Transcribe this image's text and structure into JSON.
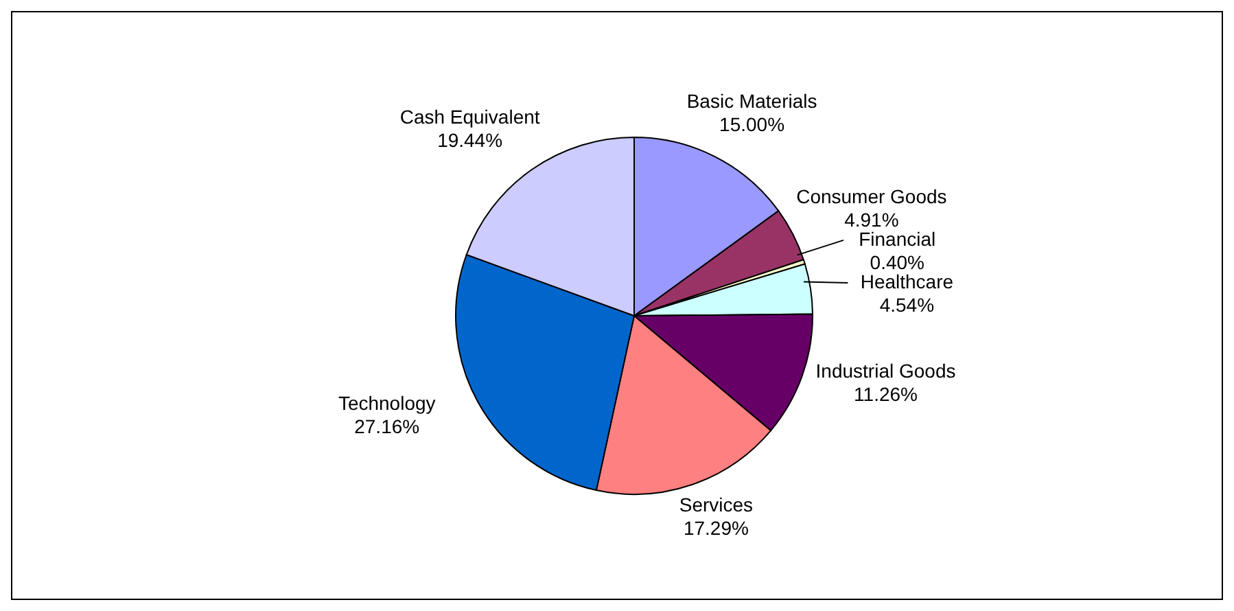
{
  "chart_data": {
    "type": "pie",
    "categories": [
      "Basic Materials",
      "Consumer Goods",
      "Financial",
      "Healthcare",
      "Industrial Goods",
      "Services",
      "Technology",
      "Cash Equivalent"
    ],
    "values": [
      15.0,
      4.91,
      0.4,
      4.54,
      11.26,
      17.29,
      27.16,
      19.44
    ],
    "value_labels": [
      "15.00%",
      "4.91%",
      "0.40%",
      "4.54%",
      "11.26%",
      "17.29%",
      "27.16%",
      "19.44%"
    ],
    "colors": [
      "#9999ff",
      "#993366",
      "#ffffcc",
      "#ccffff",
      "#660066",
      "#ff8080",
      "#0066cc",
      "#ccccff"
    ],
    "legend": false
  }
}
